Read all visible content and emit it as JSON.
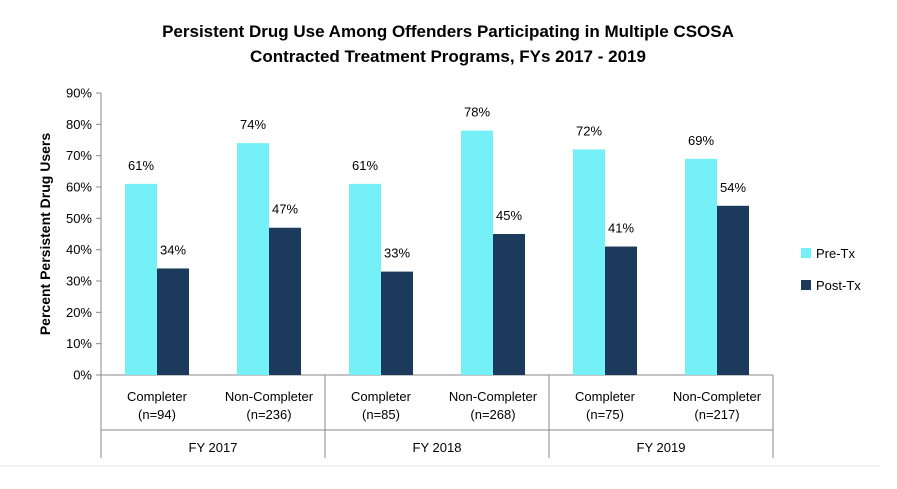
{
  "chart_data": {
    "type": "bar",
    "title_lines": [
      "Persistent Drug Use Among Offenders Participating in Multiple CSOSA",
      "Contracted Treatment Programs, FYs 2017 - 2019"
    ],
    "ylabel": "Percent Persistent Drug Users",
    "xlabel": "",
    "ylim": [
      0,
      90
    ],
    "ytick_labels": [
      "0%",
      "10%",
      "20%",
      "30%",
      "40%",
      "50%",
      "60%",
      "70%",
      "80%",
      "90%"
    ],
    "categories": [
      {
        "line1": "Completer",
        "line2": "(n=94)"
      },
      {
        "line1": "Non-Completer",
        "line2": "(n=236)"
      },
      {
        "line1": "Completer",
        "line2": "(n=85)"
      },
      {
        "line1": "Non-Completer",
        "line2": "(n=268)"
      },
      {
        "line1": "Completer",
        "line2": "(n=75)"
      },
      {
        "line1": "Non-Completer",
        "line2": "(n=217)"
      }
    ],
    "groups": [
      "FY 2017",
      "FY 2018",
      "FY 2019"
    ],
    "series": [
      {
        "name": "Pre-Tx",
        "color": "#76f0f7",
        "values": [
          61,
          74,
          61,
          78,
          72,
          69
        ],
        "labels": [
          "61%",
          "74%",
          "61%",
          "78%",
          "72%",
          "69%"
        ]
      },
      {
        "name": "Post-Tx",
        "color": "#1b3a5c",
        "values": [
          34,
          47,
          33,
          45,
          41,
          54
        ],
        "labels": [
          "34%",
          "47%",
          "33%",
          "45%",
          "41%",
          "54%"
        ]
      }
    ],
    "grid": false,
    "legend_position": "right"
  }
}
